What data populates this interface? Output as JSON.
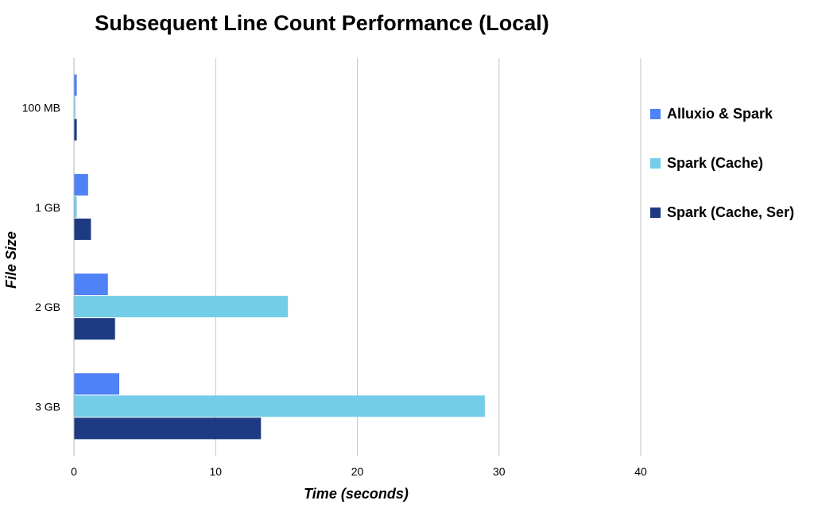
{
  "chart_data": {
    "type": "bar",
    "orientation": "horizontal",
    "title": "Subsequent Line Count Performance (Local)",
    "xlabel": "Time (seconds)",
    "ylabel": "File Size",
    "xlim": [
      0,
      40
    ],
    "xticks": [
      0,
      10,
      20,
      30,
      40
    ],
    "grid": true,
    "legend_position": "right",
    "categories": [
      "100 MB",
      "1 GB",
      "2 GB",
      "3 GB"
    ],
    "series": [
      {
        "name": "Alluxio & Spark",
        "color": "#4f81f7",
        "values": [
          0.2,
          1.0,
          2.4,
          3.2
        ]
      },
      {
        "name": "Spark (Cache)",
        "color": "#73cde8",
        "values": [
          0.1,
          0.2,
          15.1,
          29.0
        ]
      },
      {
        "name": "Spark (Cache, Ser)",
        "color": "#1d3a82",
        "values": [
          0.2,
          1.2,
          2.9,
          13.2
        ]
      }
    ]
  }
}
